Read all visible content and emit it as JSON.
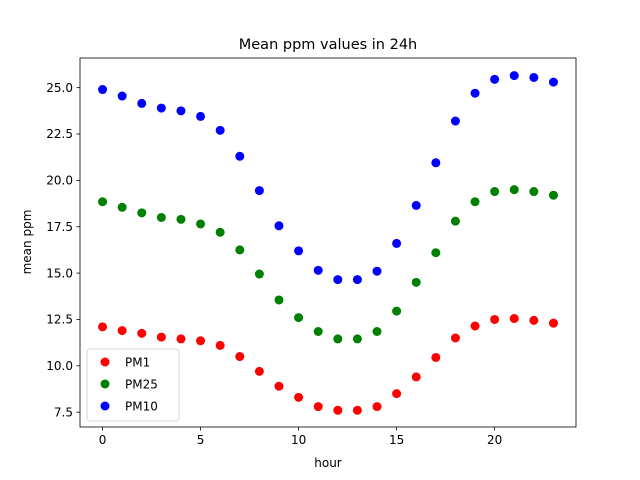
{
  "chart_data": {
    "type": "scatter",
    "title": "Mean ppm values in 24h",
    "xlabel": "hour",
    "ylabel": "mean ppm",
    "xlim": [
      -1.15,
      24.15
    ],
    "ylim": [
      6.7,
      26.6
    ],
    "x_ticks": [
      0,
      5,
      10,
      15,
      20
    ],
    "x_tick_labels": [
      "0",
      "5",
      "10",
      "15",
      "20"
    ],
    "y_ticks": [
      7.5,
      10.0,
      12.5,
      15.0,
      17.5,
      20.0,
      22.5,
      25.0
    ],
    "y_tick_labels": [
      "7.5",
      "10.0",
      "12.5",
      "15.0",
      "17.5",
      "20.0",
      "22.5",
      "25.0"
    ],
    "grid": false,
    "legend_position": "lower-left",
    "x": [
      0,
      1,
      2,
      3,
      4,
      5,
      6,
      7,
      8,
      9,
      10,
      11,
      12,
      13,
      14,
      15,
      16,
      17,
      18,
      19,
      20,
      21,
      22,
      23
    ],
    "series": [
      {
        "name": "PM1",
        "color": "#ff0000",
        "values": [
          12.1,
          11.9,
          11.75,
          11.55,
          11.45,
          11.35,
          11.1,
          10.5,
          9.7,
          8.9,
          8.3,
          7.8,
          7.6,
          7.6,
          7.8,
          8.5,
          9.4,
          10.45,
          11.5,
          12.15,
          12.5,
          12.55,
          12.45,
          12.3
        ]
      },
      {
        "name": "PM25",
        "color": "#008000",
        "values": [
          18.85,
          18.55,
          18.25,
          18.0,
          17.9,
          17.65,
          17.2,
          16.25,
          14.95,
          13.55,
          12.6,
          11.85,
          11.45,
          11.45,
          11.85,
          12.95,
          14.5,
          16.1,
          17.8,
          18.85,
          19.4,
          19.5,
          19.4,
          19.2
        ]
      },
      {
        "name": "PM10",
        "color": "#0000ff",
        "values": [
          24.9,
          24.55,
          24.15,
          23.9,
          23.75,
          23.45,
          22.7,
          21.3,
          19.45,
          17.55,
          16.2,
          15.15,
          14.65,
          14.65,
          15.1,
          16.6,
          18.65,
          20.95,
          23.2,
          24.7,
          25.45,
          25.65,
          25.55,
          25.3
        ]
      }
    ]
  }
}
